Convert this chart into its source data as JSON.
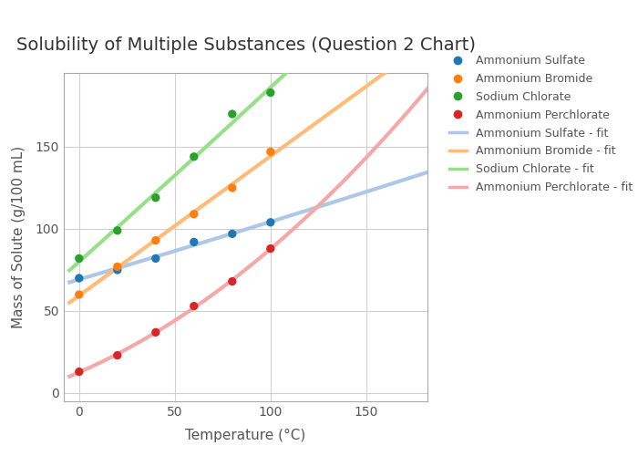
{
  "title": "Solubility of Multiple Substances (Question 2 Chart)",
  "xlabel": "Temperature (°C)",
  "ylabel": "Mass of Solute (g/100 mL)",
  "xlim": [
    -8,
    182
  ],
  "ylim": [
    -5,
    195
  ],
  "xticks": [
    0,
    50,
    100,
    150
  ],
  "yticks": [
    0,
    50,
    100,
    150
  ],
  "substances": [
    {
      "name": "Ammonium Sulfate",
      "color_dot": "#1f77b4",
      "color_fit": "#aec7e8",
      "temps": [
        0,
        20,
        40,
        60,
        80,
        100
      ],
      "values": [
        70,
        75,
        82,
        92,
        97,
        104
      ],
      "fit_degree": 2
    },
    {
      "name": "Ammonium Bromide",
      "color_dot": "#ff7f0e",
      "color_fit": "#ffbb78",
      "temps": [
        0,
        20,
        40,
        60,
        80,
        100
      ],
      "values": [
        60,
        77,
        93,
        109,
        125,
        147
      ],
      "fit_degree": 1
    },
    {
      "name": "Sodium Chlorate",
      "color_dot": "#2ca02c",
      "color_fit": "#98df8a",
      "temps": [
        0,
        20,
        40,
        60,
        80,
        100
      ],
      "values": [
        82,
        99,
        119,
        144,
        170,
        183
      ],
      "fit_degree": 2
    },
    {
      "name": "Ammonium Perchlorate",
      "color_dot": "#d62728",
      "color_fit": "#f4a9a9",
      "temps": [
        0,
        20,
        40,
        60,
        80,
        100
      ],
      "values": [
        13,
        23,
        37,
        53,
        68,
        88
      ],
      "fit_degree": 2
    }
  ],
  "background_color": "#ffffff",
  "plot_bg_color": "#ffffff",
  "grid_color": "#d0d0d0",
  "title_fontsize": 14,
  "label_fontsize": 11,
  "tick_fontsize": 10,
  "legend_fontsize": 9,
  "fit_linewidth": 3.0,
  "dot_size": 45
}
